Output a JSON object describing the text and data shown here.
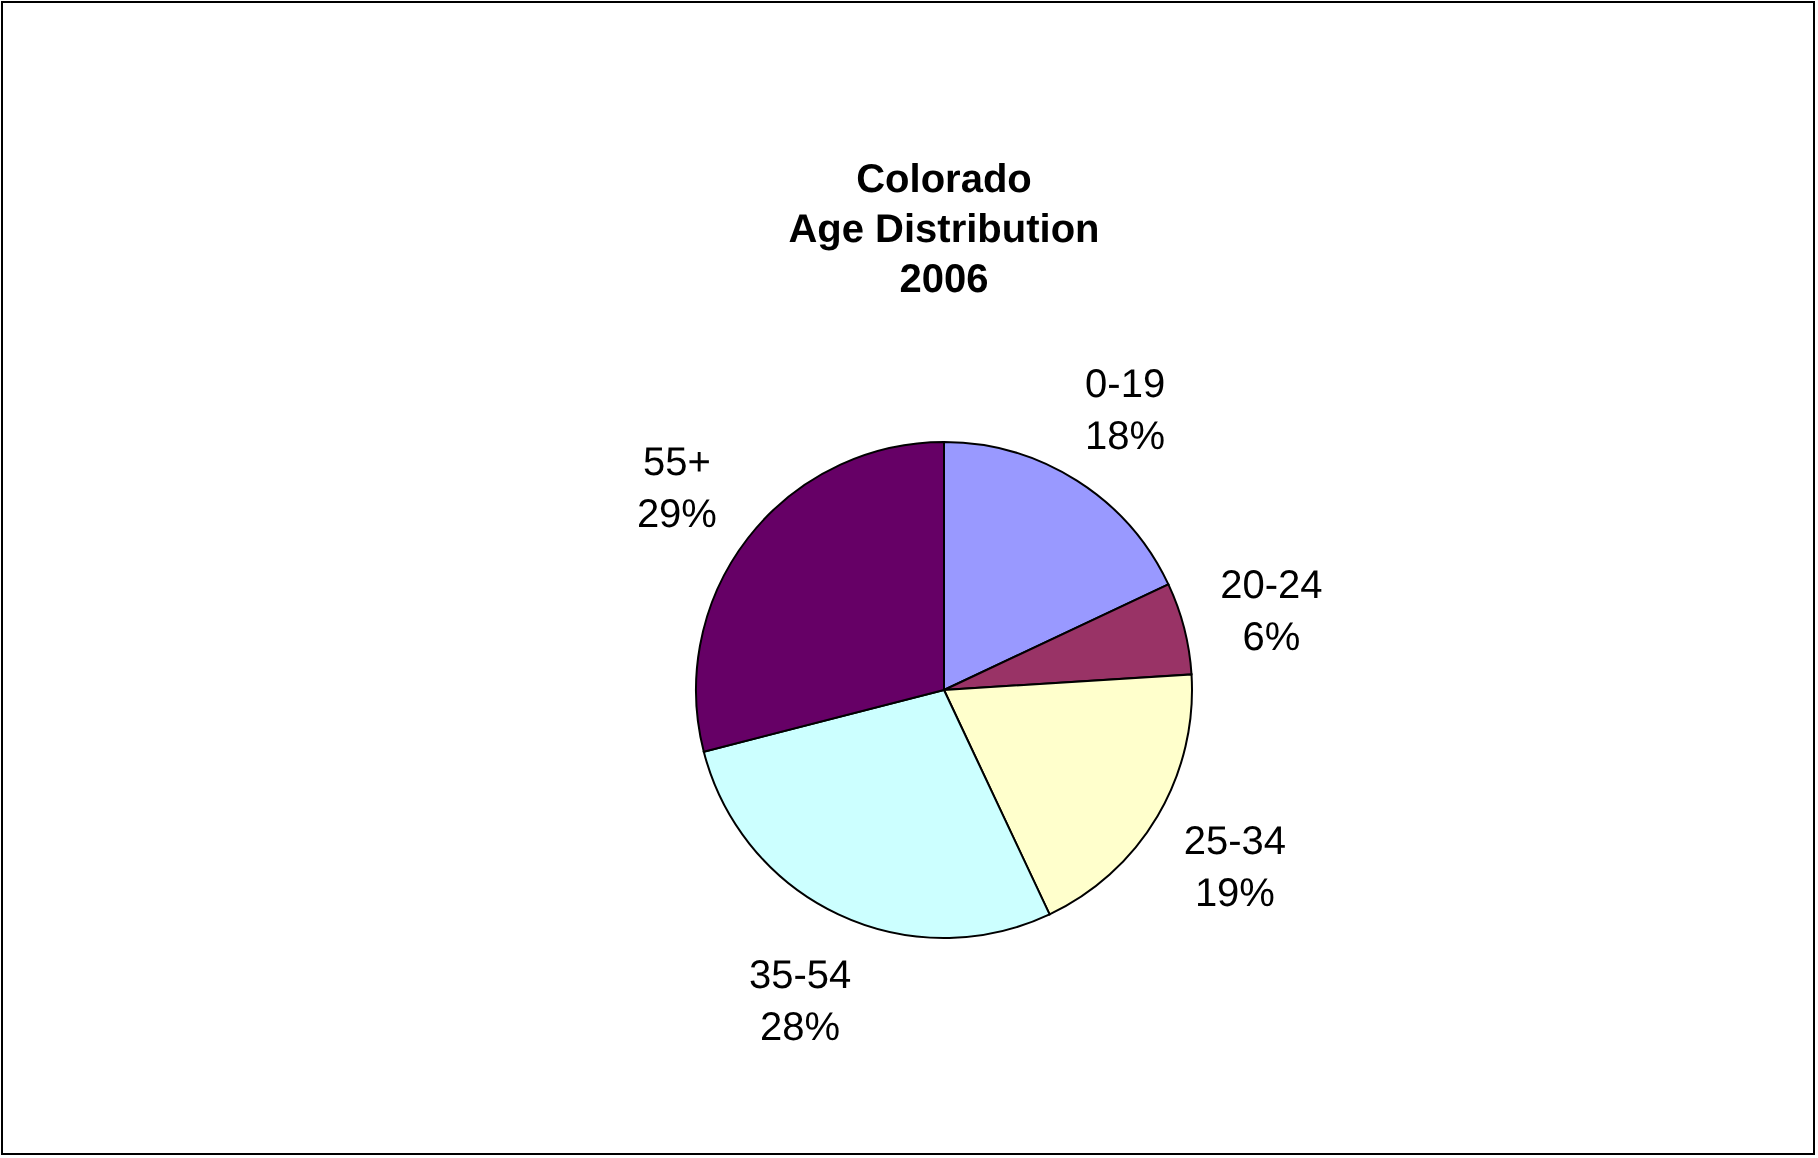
{
  "chart_data": {
    "type": "pie",
    "title": "Colorado\nAge Distribution\n2006",
    "categories": [
      "0-19",
      "20-24",
      "25-34",
      "35-54",
      "55+"
    ],
    "values": [
      18,
      6,
      19,
      28,
      29
    ],
    "value_labels": [
      "18%",
      "6%",
      "19%",
      "28%",
      "29%"
    ],
    "colors": [
      "#9999ff",
      "#993366",
      "#ffffcc",
      "#ccffff",
      "#660066"
    ]
  }
}
